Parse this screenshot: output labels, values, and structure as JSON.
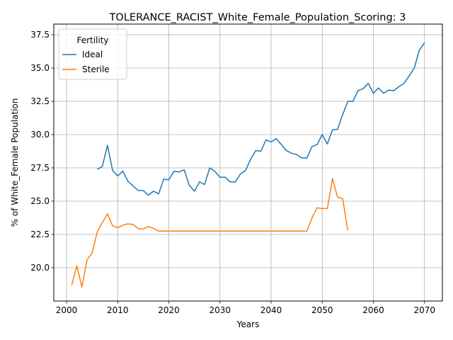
{
  "chart_data": {
    "type": "line",
    "title": "TOLERANCE_RACIST_White_Female_Population_Scoring: 3",
    "xlabel": "Years",
    "ylabel": "% of White_Female Population",
    "xlim": [
      1997.5,
      2073.5
    ],
    "ylim": [
      17.5,
      38.3
    ],
    "xticks": [
      2000,
      2010,
      2020,
      2030,
      2040,
      2050,
      2060,
      2070
    ],
    "yticks": [
      20.0,
      22.5,
      25.0,
      27.5,
      30.0,
      32.5,
      35.0,
      37.5
    ],
    "ytick_labels": [
      "20.0",
      "22.5",
      "25.0",
      "27.5",
      "30.0",
      "32.5",
      "35.0",
      "37.5"
    ],
    "grid": true,
    "legend": {
      "title": "Fertility",
      "placement": "top-left"
    },
    "series": [
      {
        "name": "Ideal",
        "color": "#1f77b4",
        "x": [
          2006,
          2007,
          2008,
          2009,
          2010,
          2011,
          2012,
          2013,
          2014,
          2015,
          2016,
          2017,
          2018,
          2019,
          2020,
          2021,
          2022,
          2023,
          2024,
          2025,
          2026,
          2027,
          2028,
          2029,
          2030,
          2031,
          2032,
          2033,
          2034,
          2035,
          2036,
          2037,
          2038,
          2039,
          2040,
          2041,
          2042,
          2043,
          2044,
          2045,
          2046,
          2047,
          2048,
          2049,
          2050,
          2051,
          2052,
          2053,
          2054,
          2055,
          2056,
          2057,
          2058,
          2059,
          2060,
          2061,
          2062,
          2063,
          2064,
          2065,
          2066,
          2067,
          2068,
          2069,
          2070
        ],
        "y": [
          27.4,
          27.6,
          29.2,
          27.3,
          26.9,
          27.25,
          26.5,
          26.15,
          25.8,
          25.8,
          25.45,
          25.75,
          25.55,
          26.65,
          26.6,
          27.25,
          27.2,
          27.35,
          26.2,
          25.75,
          26.45,
          26.25,
          27.5,
          27.25,
          26.8,
          26.8,
          26.45,
          26.45,
          27.05,
          27.3,
          28.15,
          28.8,
          28.75,
          29.6,
          29.45,
          29.7,
          29.25,
          28.8,
          28.6,
          28.5,
          28.25,
          28.25,
          29.1,
          29.25,
          30.0,
          29.3,
          30.35,
          30.4,
          31.5,
          32.5,
          32.5,
          33.3,
          33.45,
          33.85,
          33.1,
          33.5,
          33.1,
          33.35,
          33.3,
          33.6,
          33.85,
          34.4,
          35.0,
          36.35,
          36.9
        ]
      },
      {
        "name": "Sterile",
        "color": "#ff7f0e",
        "x": [
          2001,
          2002,
          2003,
          2004,
          2005,
          2006,
          2007,
          2008,
          2009,
          2010,
          2011,
          2012,
          2013,
          2014,
          2015,
          2016,
          2017,
          2018,
          2019,
          2020,
          2021,
          2022,
          2023,
          2024,
          2025,
          2026,
          2027,
          2028,
          2029,
          2030,
          2031,
          2032,
          2033,
          2034,
          2035,
          2036,
          2037,
          2038,
          2039,
          2040,
          2041,
          2042,
          2043,
          2044,
          2045,
          2046,
          2047,
          2048,
          2049,
          2050,
          2051,
          2052,
          2053,
          2054,
          2055
        ],
        "y": [
          18.7,
          20.15,
          18.55,
          20.6,
          21.1,
          22.7,
          23.4,
          24.05,
          23.15,
          23.0,
          23.2,
          23.3,
          23.25,
          22.95,
          22.9,
          23.1,
          22.95,
          22.75,
          22.75,
          22.75,
          22.75,
          22.75,
          22.75,
          22.75,
          22.75,
          22.75,
          22.75,
          22.75,
          22.75,
          22.75,
          22.75,
          22.75,
          22.75,
          22.75,
          22.75,
          22.75,
          22.75,
          22.75,
          22.75,
          22.75,
          22.75,
          22.75,
          22.75,
          22.75,
          22.75,
          22.75,
          22.75,
          23.75,
          24.5,
          24.45,
          24.45,
          26.7,
          25.3,
          25.2,
          22.8
        ]
      }
    ]
  }
}
